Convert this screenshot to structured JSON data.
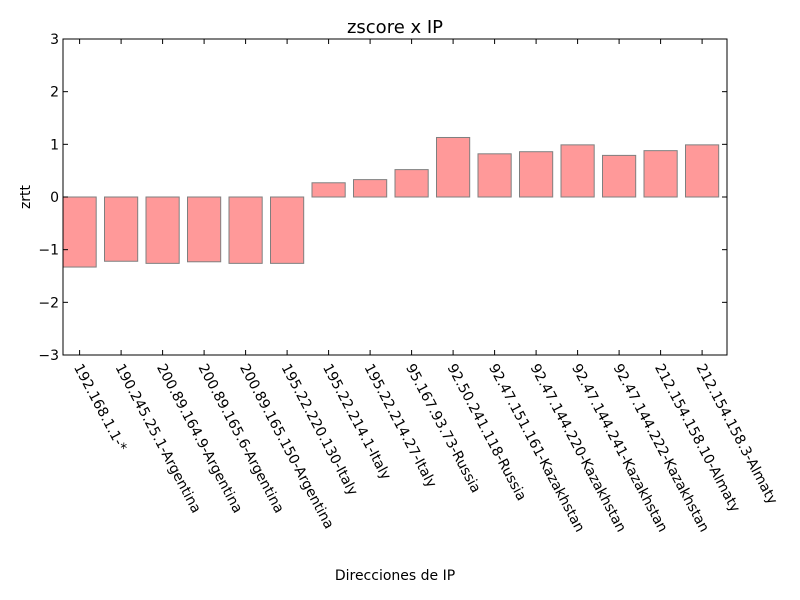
{
  "chart_data": {
    "type": "bar",
    "title": "zscore x IP",
    "xlabel": "Direcciones de IP",
    "ylabel": "zrtt",
    "ylim": [
      -3,
      3
    ],
    "yticks": [
      -3,
      -2,
      -1,
      0,
      1,
      2,
      3
    ],
    "grid": false,
    "bar_color": "#ff9999",
    "bar_edge_color": "#7f7f7f",
    "categories": [
      "192.168.1.1-*",
      "190.245.25.1-Argentina",
      "200.89.164.9-Argentina",
      "200.89.165.6-Argentina",
      "200.89.165.150-Argentina",
      "195.22.220.130-Italy",
      "195.22.214.1-Italy",
      "195.22.214.27-Italy",
      "95.167.93.73-Russia",
      "92.50.241.118-Russia",
      "92.47.151.161-Kazakhstan",
      "92.47.144.220-Kazakhstan",
      "92.47.144.241-Kazakhstan",
      "92.47.144.222-Kazakhstan",
      "212.154.158.10-Almaty",
      "212.154.158.3-Almaty"
    ],
    "values": [
      -1.33,
      -1.22,
      -1.26,
      -1.23,
      -1.26,
      -1.26,
      0.27,
      0.33,
      0.52,
      1.13,
      0.82,
      0.86,
      0.99,
      0.79,
      0.88,
      0.99
    ]
  }
}
